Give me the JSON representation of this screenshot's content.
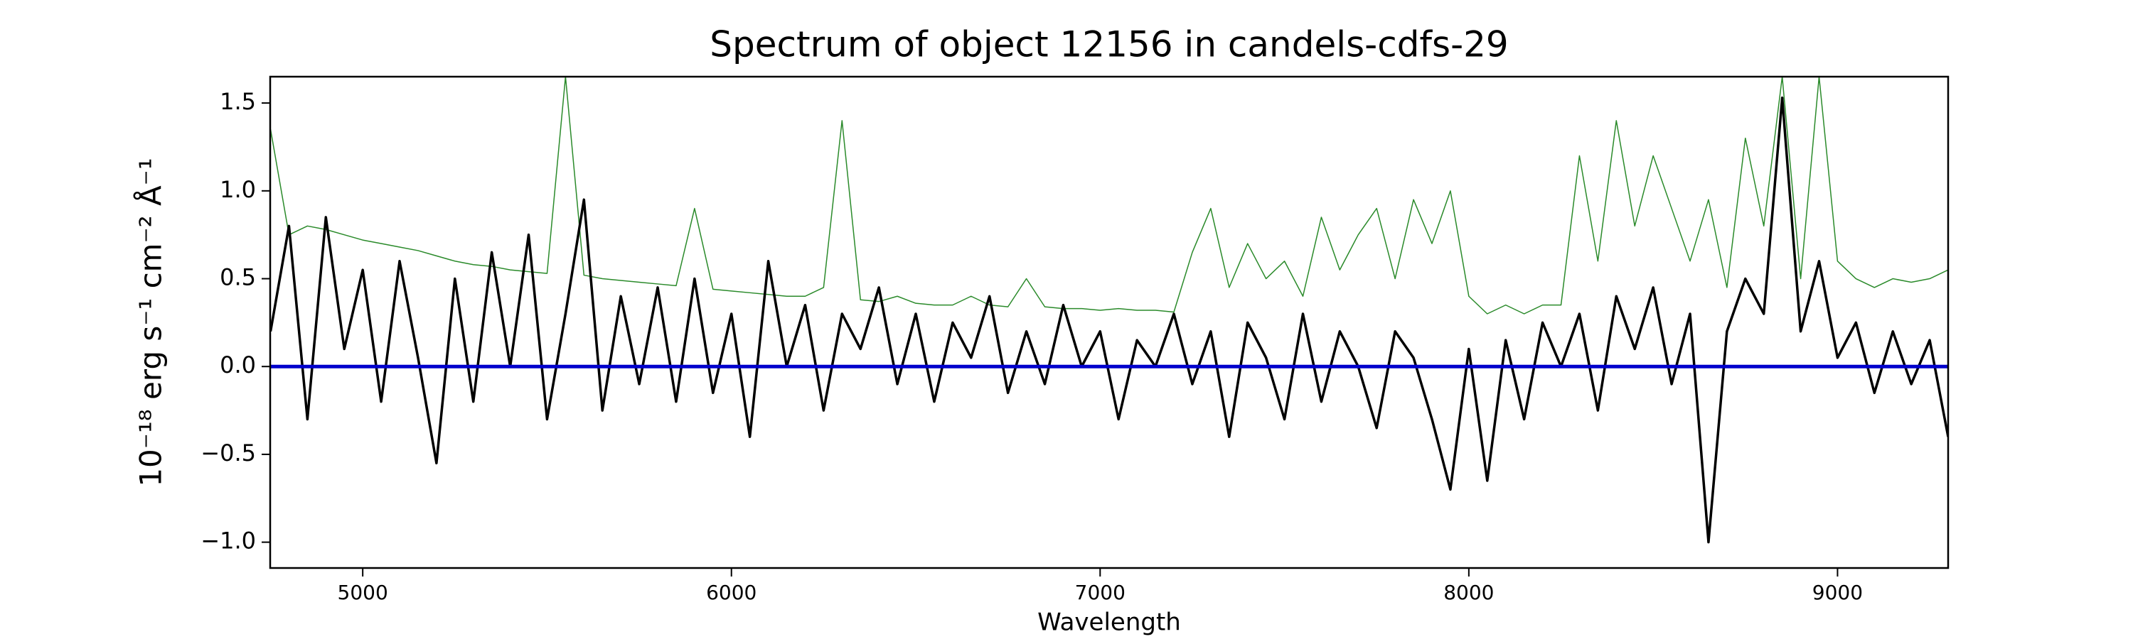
{
  "chart_data": {
    "type": "line",
    "title": "Spectrum of object 12156 in candels-cdfs-29",
    "xlabel": "Wavelength",
    "ylabel": "10⁻¹⁸ erg s⁻¹ cm⁻² Å⁻¹",
    "x": [
      4750,
      4800,
      4850,
      4900,
      4950,
      5000,
      5050,
      5100,
      5150,
      5200,
      5250,
      5300,
      5350,
      5400,
      5450,
      5500,
      5550,
      5600,
      5650,
      5700,
      5750,
      5800,
      5850,
      5900,
      5950,
      6000,
      6050,
      6100,
      6150,
      6200,
      6250,
      6300,
      6350,
      6400,
      6450,
      6500,
      6550,
      6600,
      6650,
      6700,
      6750,
      6800,
      6850,
      6900,
      6950,
      7000,
      7050,
      7100,
      7150,
      7200,
      7250,
      7300,
      7350,
      7400,
      7450,
      7500,
      7550,
      7600,
      7650,
      7700,
      7750,
      7800,
      7850,
      7900,
      7950,
      8000,
      8050,
      8100,
      8150,
      8200,
      8250,
      8300,
      8350,
      8400,
      8450,
      8500,
      8550,
      8600,
      8650,
      8700,
      8750,
      8800,
      8850,
      8900,
      8950,
      9000,
      9050,
      9100,
      9150,
      9200,
      9250,
      9300
    ],
    "series": [
      {
        "color": "#2a8a2a",
        "width": 1.5,
        "values": [
          1.35,
          0.75,
          0.8,
          0.78,
          0.75,
          0.72,
          0.7,
          0.68,
          0.66,
          0.63,
          0.6,
          0.58,
          0.57,
          0.55,
          0.54,
          0.53,
          1.65,
          0.52,
          0.5,
          0.49,
          0.48,
          0.47,
          0.46,
          0.9,
          0.44,
          0.43,
          0.42,
          0.41,
          0.4,
          0.4,
          0.45,
          1.4,
          0.38,
          0.37,
          0.4,
          0.36,
          0.35,
          0.35,
          0.4,
          0.35,
          0.34,
          0.5,
          0.34,
          0.33,
          0.33,
          0.32,
          0.33,
          0.32,
          0.32,
          0.31,
          0.65,
          0.9,
          0.45,
          0.7,
          0.5,
          0.6,
          0.4,
          0.85,
          0.55,
          0.75,
          0.9,
          0.5,
          0.95,
          0.7,
          1.0,
          0.4,
          0.3,
          0.35,
          0.3,
          0.35,
          0.35,
          1.2,
          0.6,
          1.4,
          0.8,
          1.2,
          0.9,
          0.6,
          0.95,
          0.45,
          1.3,
          0.8,
          1.65,
          0.5,
          1.65,
          0.6,
          0.5,
          0.45,
          0.5,
          0.48,
          0.5,
          0.55
        ]
      },
      {
        "color": "#000000",
        "width": 3.5,
        "values": [
          0.2,
          0.8,
          -0.3,
          0.85,
          0.1,
          0.55,
          -0.2,
          0.6,
          0.05,
          -0.55,
          0.5,
          -0.2,
          0.65,
          0.0,
          0.75,
          -0.3,
          0.3,
          0.95,
          -0.25,
          0.4,
          -0.1,
          0.45,
          -0.2,
          0.5,
          -0.15,
          0.3,
          -0.4,
          0.6,
          0.0,
          0.35,
          -0.25,
          0.3,
          0.1,
          0.45,
          -0.1,
          0.3,
          -0.2,
          0.25,
          0.05,
          0.4,
          -0.15,
          0.2,
          -0.1,
          0.35,
          0.0,
          0.2,
          -0.3,
          0.15,
          0.0,
          0.3,
          -0.1,
          0.2,
          -0.4,
          0.25,
          0.05,
          -0.3,
          0.3,
          -0.2,
          0.2,
          0.0,
          -0.35,
          0.2,
          0.05,
          -0.3,
          -0.7,
          0.1,
          -0.65,
          0.15,
          -0.3,
          0.25,
          0.0,
          0.3,
          -0.25,
          0.4,
          0.1,
          0.45,
          -0.1,
          0.3,
          -1.0,
          0.2,
          0.5,
          0.3,
          1.53,
          0.2,
          0.6,
          0.05,
          0.25,
          -0.15,
          0.2,
          -0.1,
          0.15,
          -0.4
        ]
      },
      {
        "color": "#0000cc",
        "width": 5,
        "values": [
          0,
          0,
          0,
          0,
          0,
          0,
          0,
          0,
          0,
          0,
          0,
          0,
          0,
          0,
          0,
          0,
          0,
          0,
          0,
          0,
          0,
          0,
          0,
          0,
          0,
          0,
          0,
          0,
          0,
          0,
          0,
          0,
          0,
          0,
          0,
          0,
          0,
          0,
          0,
          0,
          0,
          0,
          0,
          0,
          0,
          0,
          0,
          0,
          0,
          0,
          0,
          0,
          0,
          0,
          0,
          0,
          0,
          0,
          0,
          0,
          0,
          0,
          0,
          0,
          0,
          0,
          0,
          0,
          0,
          0,
          0,
          0,
          0,
          0,
          0,
          0,
          0,
          0,
          0,
          0,
          0,
          0,
          0,
          0,
          0,
          0,
          0,
          0,
          0,
          0,
          0,
          0
        ]
      }
    ],
    "xlim": [
      4749,
      9300
    ],
    "ylim": [
      -1.147,
      1.65
    ],
    "xticks": [
      5000,
      6000,
      7000,
      8000,
      9000
    ],
    "yticks": [
      {
        "value": -1.0,
        "label": "−1.0"
      },
      {
        "value": -0.5,
        "label": "−0.5"
      },
      {
        "value": 0.0,
        "label": "0.0"
      },
      {
        "value": 0.5,
        "label": "0.5"
      },
      {
        "value": 1.0,
        "label": "1.0"
      },
      {
        "value": 1.5,
        "label": "1.5"
      }
    ]
  }
}
